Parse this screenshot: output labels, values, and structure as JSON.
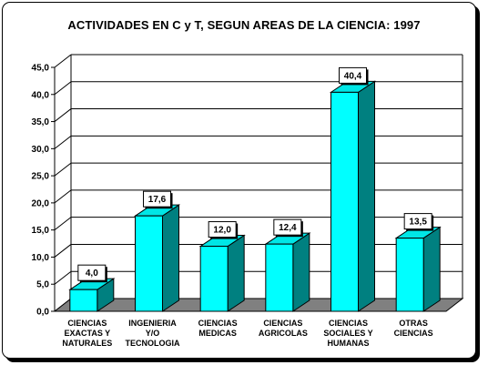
{
  "chart_data": {
    "type": "bar",
    "title": "ACTIVIDADES EN C y T, SEGUN AREAS DE LA CIENCIA: 1997",
    "categories": [
      [
        "CIENCIAS",
        "EXACTAS Y",
        "NATURALES"
      ],
      [
        "INGENIERIA",
        "Y/O",
        "TECNOLOGIA"
      ],
      [
        "CIENCIAS",
        "MEDICAS"
      ],
      [
        "CIENCIAS",
        "AGRICOLAS"
      ],
      [
        "CIENCIAS",
        "SOCIALES Y",
        "HUMANAS"
      ],
      [
        "OTRAS",
        "CIENCIAS"
      ]
    ],
    "values": [
      4.0,
      17.6,
      12.0,
      12.4,
      40.4,
      13.5
    ],
    "value_labels": [
      "4,0",
      "17,6",
      "12,0",
      "12,4",
      "40,4",
      "13,5"
    ],
    "y_ticks": [
      "0,0",
      "5,0",
      "10,0",
      "15,0",
      "20,0",
      "25,0",
      "30,0",
      "35,0",
      "40,0",
      "45,0"
    ],
    "ylim": [
      0,
      45
    ],
    "grid": true,
    "colors": {
      "bar_front": "#00ffff",
      "bar_side": "#008080",
      "bar_top": "#00e6e6",
      "floor": "#808080",
      "grid": "#000000"
    }
  }
}
